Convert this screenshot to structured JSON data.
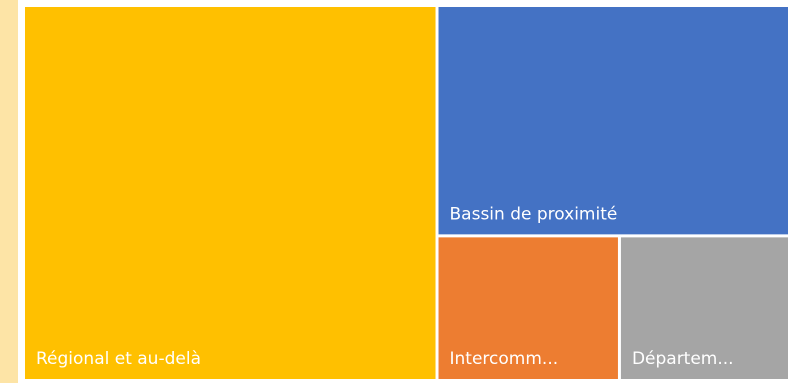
{
  "chart_data": {
    "type": "treemap",
    "title": "",
    "items": [
      {
        "label": "Régional et au-delà",
        "value": 54,
        "color": "#ffc000"
      },
      {
        "label": "Bassin de proximité",
        "value": 28.3,
        "color": "#4472c4"
      },
      {
        "label": "Intercomm...",
        "value": 9.2,
        "color": "#ed7d31"
      },
      {
        "label": "Départem...",
        "value": 8.5,
        "color": "#a5a5a5"
      }
    ]
  }
}
